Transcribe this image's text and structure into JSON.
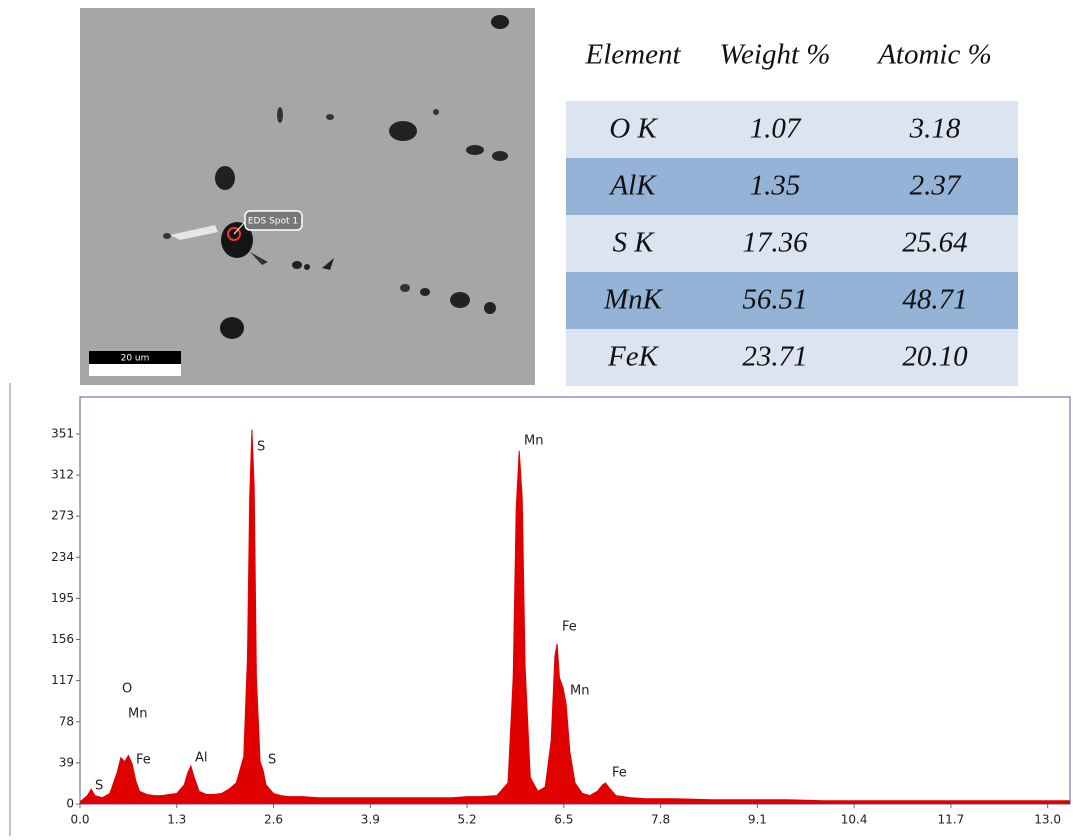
{
  "image": {
    "spot_label": "EDS Spot 1",
    "scale_label": "20 um"
  },
  "table": {
    "header": [
      "Element",
      "Weight %",
      "Atomic %"
    ],
    "rows": [
      [
        "O K",
        "1.07",
        "3.18"
      ],
      [
        "AlK",
        "1.35",
        "2.37"
      ],
      [
        "S K",
        "17.36",
        "25.64"
      ],
      [
        "MnK",
        "56.51",
        "48.71"
      ],
      [
        "FeK",
        "23.71",
        "20.10"
      ]
    ]
  },
  "chart_data": {
    "type": "area",
    "color": "#e00000",
    "x": [
      0.0,
      0.1,
      0.15,
      0.2,
      0.3,
      0.4,
      0.5,
      0.55,
      0.6,
      0.65,
      0.7,
      0.75,
      0.8,
      0.9,
      1.0,
      1.1,
      1.2,
      1.3,
      1.4,
      1.45,
      1.49,
      1.53,
      1.6,
      1.7,
      1.8,
      1.9,
      2.0,
      2.1,
      2.2,
      2.25,
      2.28,
      2.31,
      2.34,
      2.37,
      2.42,
      2.46,
      2.5,
      2.6,
      2.7,
      2.8,
      3.0,
      3.2,
      3.4,
      3.6,
      3.8,
      4.0,
      4.2,
      4.4,
      4.6,
      4.8,
      5.0,
      5.2,
      5.4,
      5.6,
      5.75,
      5.82,
      5.86,
      5.9,
      5.94,
      5.98,
      6.05,
      6.15,
      6.25,
      6.33,
      6.38,
      6.41,
      6.44,
      6.49,
      6.53,
      6.58,
      6.65,
      6.75,
      6.85,
      6.95,
      7.02,
      7.06,
      7.1,
      7.2,
      7.4,
      7.6,
      7.8,
      8.0,
      8.5,
      9.0,
      9.5,
      10.0,
      10.5,
      11.0,
      11.5,
      12.0,
      12.5,
      13.0,
      13.3
    ],
    "values": [
      2,
      8,
      14,
      8,
      6,
      10,
      30,
      44,
      40,
      46,
      38,
      22,
      12,
      9,
      8,
      8,
      9,
      10,
      18,
      30,
      36,
      26,
      12,
      9,
      9,
      10,
      14,
      20,
      45,
      140,
      290,
      355,
      300,
      120,
      40,
      32,
      18,
      10,
      8,
      7,
      7,
      6,
      6,
      6,
      6,
      6,
      6,
      6,
      6,
      6,
      6,
      7,
      7,
      8,
      20,
      120,
      280,
      335,
      290,
      130,
      25,
      12,
      16,
      60,
      140,
      152,
      120,
      110,
      95,
      50,
      20,
      10,
      8,
      12,
      18,
      20,
      16,
      8,
      6,
      5,
      5,
      5,
      4,
      4,
      4,
      3,
      3,
      3,
      3,
      3,
      3,
      3,
      3
    ],
    "annotations": [
      "S",
      "O",
      "Mn",
      "Fe",
      "Al",
      "S",
      "S",
      "Mn",
      "Fe",
      "Mn",
      "Fe"
    ],
    "xlim": [
      0,
      13.3
    ],
    "ylim": [
      0,
      386
    ],
    "xticks": [
      {
        "value": 0,
        "label": "0.0"
      },
      1.3,
      2.6,
      3.9,
      5.2,
      6.5,
      7.8,
      9.1,
      10.4,
      11.7,
      {
        "value": 13,
        "label": "13.0"
      }
    ],
    "yticks": [
      0,
      39,
      78,
      117,
      156,
      195,
      234,
      273,
      312,
      351
    ]
  }
}
